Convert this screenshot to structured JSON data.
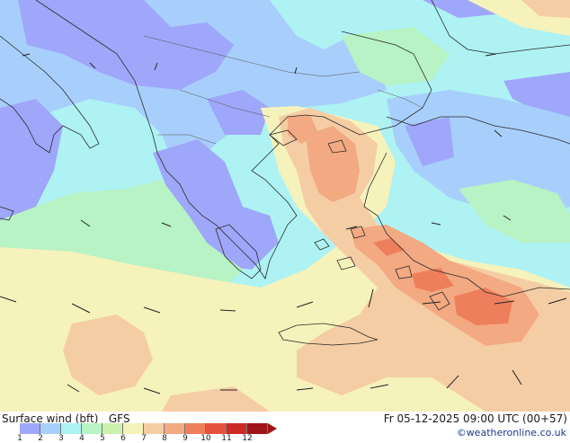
{
  "map": {
    "title": "Surface wind (bft)",
    "model": "GFS",
    "valid_time": "Fr 05-12-2025 09:00 UTC (00+57)",
    "credit": "©weatheronline.co.uk",
    "legend": {
      "ticks": [
        "1",
        "2",
        "3",
        "4",
        "5",
        "6",
        "7",
        "8",
        "9",
        "10",
        "11",
        "12"
      ],
      "colors": [
        "#9fa7fa",
        "#a8cffb",
        "#aef2f3",
        "#b7f3c4",
        "#cdf1ad",
        "#f6f2bc",
        "#f5cda4",
        "#f3a982",
        "#ee7f5d",
        "#e5533f",
        "#cd2a26",
        "#9f1419"
      ]
    },
    "colors": {
      "sea_light_blue": "#aef2f3",
      "sea_blue": "#9fa7fa",
      "mid_blue": "#a8cffb",
      "light_green": "#b7f3c4",
      "yellow": "#f6f2bc",
      "peach": "#f5cda4",
      "orange": "#f3a982",
      "dark_orange": "#ee7f5d"
    }
  }
}
